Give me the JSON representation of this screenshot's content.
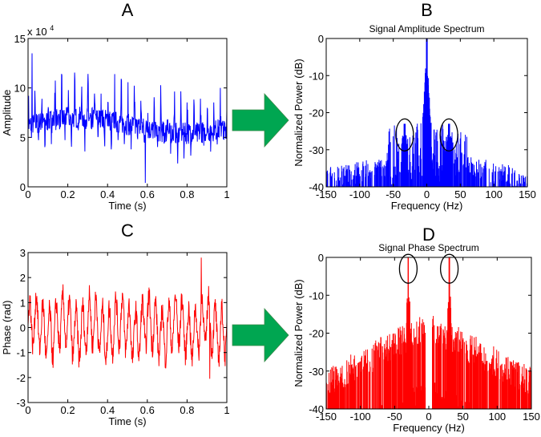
{
  "chart_data": [
    {
      "panel": "A",
      "type": "line",
      "title": "",
      "xlabel": "Time (s)",
      "ylabel": "Amplitude",
      "y_multiplier": "x 10",
      "y_multiplier_exp": "4",
      "xlim": [
        0,
        1
      ],
      "ylim": [
        0,
        15
      ],
      "xticks": [
        "0",
        "0.2",
        "0.4",
        "0.6",
        "0.8",
        "1"
      ],
      "yticks": [
        "0",
        "5",
        "10",
        "15"
      ],
      "series": [
        {
          "name": "amplitude",
          "color": "#0000ff",
          "mean": 6.2,
          "min": 0.3,
          "max": 13.5,
          "spike_rate_hz": 30
        }
      ]
    },
    {
      "panel": "B",
      "type": "line",
      "title": "Signal Amplitude Spectrum",
      "xlabel": "Frequency (Hz)",
      "ylabel": "Normalized Power (dB)",
      "xlim": [
        -150,
        150
      ],
      "ylim": [
        -40,
        0
      ],
      "xticks": [
        "-150",
        "-100",
        "-50",
        "0",
        "50",
        "100",
        "150"
      ],
      "yticks": [
        "0",
        "-10",
        "-20",
        "-30",
        "-40"
      ],
      "series": [
        {
          "name": "amplitude spectrum",
          "color": "#0000ff",
          "peaks": [
            {
              "x": 0,
              "y": 0
            },
            {
              "x": -33,
              "y": -23
            },
            {
              "x": 33,
              "y": -23
            }
          ]
        }
      ],
      "annotations": [
        {
          "type": "ellipse",
          "x": -33,
          "y": -26
        },
        {
          "type": "ellipse",
          "x": 33,
          "y": -26
        }
      ]
    },
    {
      "panel": "C",
      "type": "line",
      "title": "",
      "xlabel": "Time (s)",
      "ylabel": "Phase (rad)",
      "xlim": [
        0,
        1
      ],
      "ylim": [
        -3,
        3
      ],
      "xticks": [
        "0",
        "0.2",
        "0.4",
        "0.6",
        "0.8",
        "1"
      ],
      "yticks": [
        "-3",
        "-2",
        "-1",
        "0",
        "1",
        "2",
        "3"
      ],
      "series": [
        {
          "name": "phase",
          "color": "#ff0000",
          "min": -2.1,
          "max": 2.8,
          "oscillation_hz": 30
        }
      ]
    },
    {
      "panel": "D",
      "type": "line",
      "title": "Signal Phase Spectrum",
      "xlabel": "Frequency (Hz)",
      "ylabel": "Normalized Power (dB)",
      "xlim": [
        -150,
        150
      ],
      "ylim": [
        -40,
        0
      ],
      "xticks": [
        "-150",
        "-100",
        "-50",
        "0",
        "50",
        "100",
        "150"
      ],
      "yticks": [
        "0",
        "-10",
        "-20",
        "-30",
        "-40"
      ],
      "series": [
        {
          "name": "phase spectrum",
          "color": "#ff0000",
          "peaks": [
            {
              "x": -30,
              "y": 0
            },
            {
              "x": 30,
              "y": 0
            }
          ]
        }
      ],
      "annotations": [
        {
          "type": "ellipse",
          "x": -30,
          "y": -3
        },
        {
          "type": "ellipse",
          "x": 30,
          "y": -3
        }
      ]
    }
  ],
  "arrow_color": "#00a651"
}
